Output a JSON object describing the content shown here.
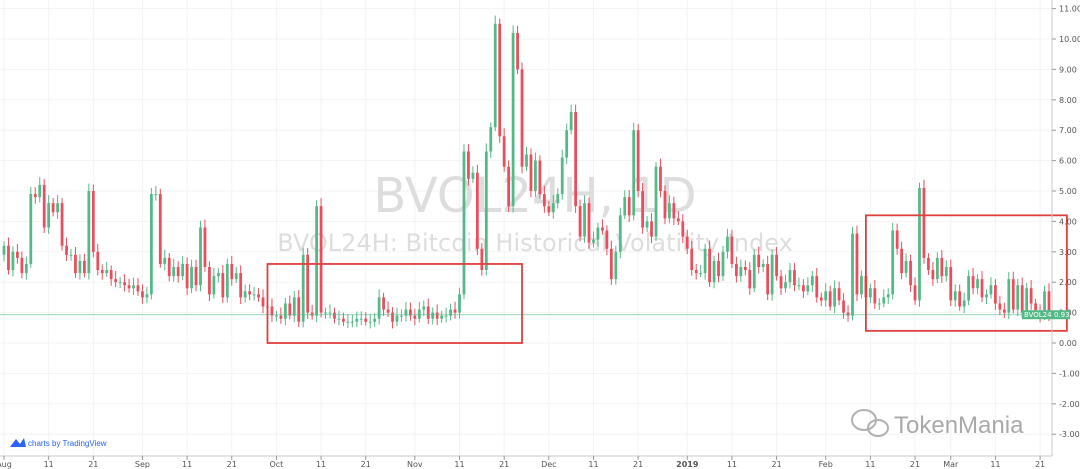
{
  "chart_data": {
    "type": "candlestick",
    "title": "BVOL24H, 1D",
    "subtitle": "BVOL24H: Bitcoin Historical Volatility Index",
    "ylim": [
      -3.4,
      11.2
    ],
    "y_ticks": [
      "-3.00",
      "-2.00",
      "-1.00",
      "0.00",
      "1.00",
      "2.00",
      "3.00",
      "4.00",
      "5.00",
      "6.00",
      "7.00",
      "8.00",
      "9.00",
      "10.00",
      "11.00"
    ],
    "x_ticks": [
      "Aug",
      "11",
      "21",
      "Sep",
      "11",
      "21",
      "Oct",
      "11",
      "21",
      "Nov",
      "11",
      "21",
      "Dec",
      "11",
      "21",
      "2019",
      "11",
      "21",
      "Feb",
      "11",
      "21",
      "Mar",
      "11",
      "21"
    ],
    "last_value_label": "BVOL24H",
    "last_value": "0.93",
    "up_color": "#53b987",
    "down_color": "#eb4d5c",
    "highlight_color": "#e0403d",
    "closes": [
      3.2,
      2.4,
      3.0,
      2.8,
      2.3,
      2.6,
      4.9,
      4.8,
      5.2,
      3.8,
      4.6,
      4.3,
      4.6,
      3.2,
      2.9,
      2.9,
      2.3,
      2.7,
      2.3,
      5.0,
      3.0,
      2.4,
      2.3,
      2.4,
      2.1,
      2.0,
      2.0,
      1.9,
      1.8,
      1.9,
      1.7,
      1.5,
      1.6,
      4.9,
      4.9,
      2.6,
      2.8,
      2.2,
      2.5,
      2.2,
      2.6,
      1.8,
      2.5,
      1.9,
      3.8,
      2.5,
      1.6,
      2.2,
      2.3,
      1.5,
      2.6,
      2.1,
      2.3,
      1.5,
      1.7,
      1.6,
      1.6,
      1.5,
      1.2,
      1.2,
      0.9,
      0.9,
      0.8,
      1.3,
      0.9,
      1.5,
      0.7,
      2.9,
      1.0,
      0.9,
      4.5,
      1.0,
      1.0,
      1.0,
      0.8,
      0.8,
      0.7,
      0.7,
      0.7,
      0.8,
      0.8,
      0.7,
      0.7,
      0.8,
      1.5,
      1.1,
      1.0,
      0.7,
      0.9,
      0.9,
      1.1,
      0.9,
      0.8,
      1.1,
      1.2,
      0.8,
      1.0,
      0.8,
      0.9,
      0.9,
      1.1,
      1.0,
      1.6,
      6.3,
      5.4,
      5.6,
      3.1,
      2.4,
      6.3,
      7.1,
      10.5,
      6.8,
      5.8,
      4.5,
      10.2,
      9.0,
      5.8,
      6.2,
      5.0,
      6.0,
      4.9,
      4.5,
      4.3,
      4.6,
      4.9,
      6.1,
      7.0,
      7.6,
      4.5,
      3.5,
      4.6,
      3.3,
      3.4,
      3.8,
      3.7,
      3.1,
      2.1,
      3.0,
      4.2,
      4.8,
      4.2,
      7.0,
      5.0,
      3.8,
      4.0,
      3.5,
      5.8,
      5.0,
      4.1,
      4.6,
      4.1,
      4.0,
      3.5,
      3.1,
      2.4,
      2.3,
      2.3,
      3.1,
      2.0,
      2.7,
      2.2,
      3.0,
      3.5,
      2.6,
      2.2,
      2.5,
      2.4,
      1.8,
      2.9,
      2.5,
      2.6,
      1.6,
      2.9,
      2.2,
      1.8,
      2.0,
      2.4,
      1.9,
      1.9,
      1.7,
      1.9,
      2.2,
      1.5,
      1.4,
      1.7,
      1.2,
      1.8,
      1.4,
      1.0,
      0.9,
      3.6,
      1.6,
      2.2,
      1.5,
      1.8,
      1.3,
      1.3,
      1.5,
      1.6,
      3.7,
      3.1,
      2.3,
      2.7,
      1.9,
      1.4,
      5.1,
      2.8,
      2.4,
      2.1,
      2.8,
      2.2,
      2.5,
      1.4,
      1.7,
      1.2,
      1.4,
      2.2,
      1.8,
      2.1,
      1.5,
      1.6,
      1.9,
      1.3,
      1.1,
      1.0,
      2.1,
      1.1,
      1.9,
      1.0,
      1.8,
      1.3,
      1.0,
      0.9,
      1.7,
      0.93
    ],
    "annotations": [
      {
        "type": "rectangle",
        "x_start": "Sep 29",
        "x_end": "Nov 25",
        "y_bottom": 0.0,
        "y_top": 2.6
      },
      {
        "type": "rectangle",
        "x_start": "Feb 10",
        "x_end": "Mar 27",
        "y_bottom": 0.4,
        "y_top": 4.2
      }
    ]
  },
  "footer": {
    "tradingview_label": "charts by TradingView",
    "brand_label": "TokenMania"
  }
}
